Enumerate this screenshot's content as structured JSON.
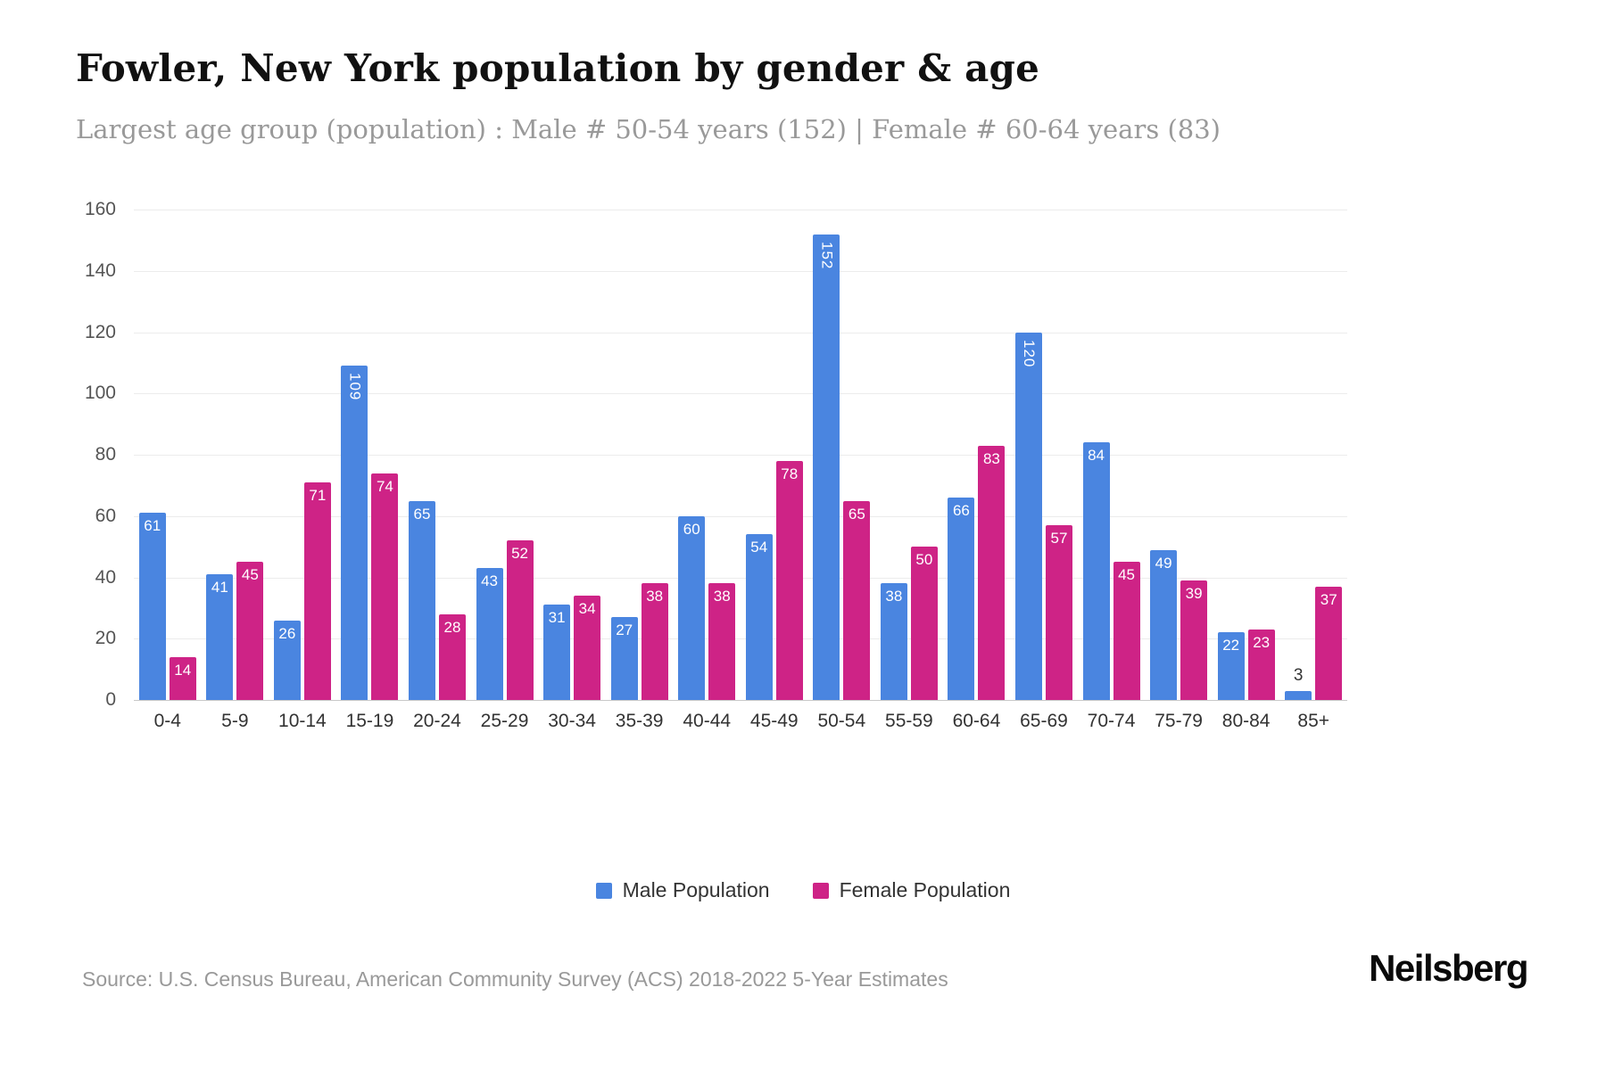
{
  "header": {
    "title": "Fowler, New York population by gender & age",
    "subtitle": "Largest age group (population) : Male # 50-54 years (152) | Female # 60-64 years (83)"
  },
  "chart_data": {
    "type": "bar",
    "title": "Fowler, New York population by gender & age",
    "categories": [
      "0-4",
      "5-9",
      "10-14",
      "15-19",
      "20-24",
      "25-29",
      "30-34",
      "35-39",
      "40-44",
      "45-49",
      "50-54",
      "55-59",
      "60-64",
      "65-69",
      "70-74",
      "75-79",
      "80-84",
      "85+"
    ],
    "series": [
      {
        "name": "Male Population",
        "color": "#4a85e0",
        "values": [
          61,
          41,
          26,
          109,
          65,
          43,
          31,
          27,
          60,
          54,
          152,
          38,
          66,
          120,
          84,
          49,
          22,
          3
        ]
      },
      {
        "name": "Female Population",
        "color": "#ce2386",
        "values": [
          14,
          45,
          71,
          74,
          28,
          52,
          34,
          38,
          38,
          78,
          65,
          50,
          83,
          57,
          45,
          39,
          23,
          37
        ]
      }
    ],
    "xlabel": "",
    "ylabel": "",
    "ylim": [
      0,
      160
    ],
    "ytick_interval": 20,
    "grid": true,
    "legend_position": "bottom"
  },
  "footer": {
    "source": "Source: U.S. Census Bureau, American Community Survey (ACS) 2018-2022 5-Year Estimates",
    "brand": "Neilsberg"
  }
}
